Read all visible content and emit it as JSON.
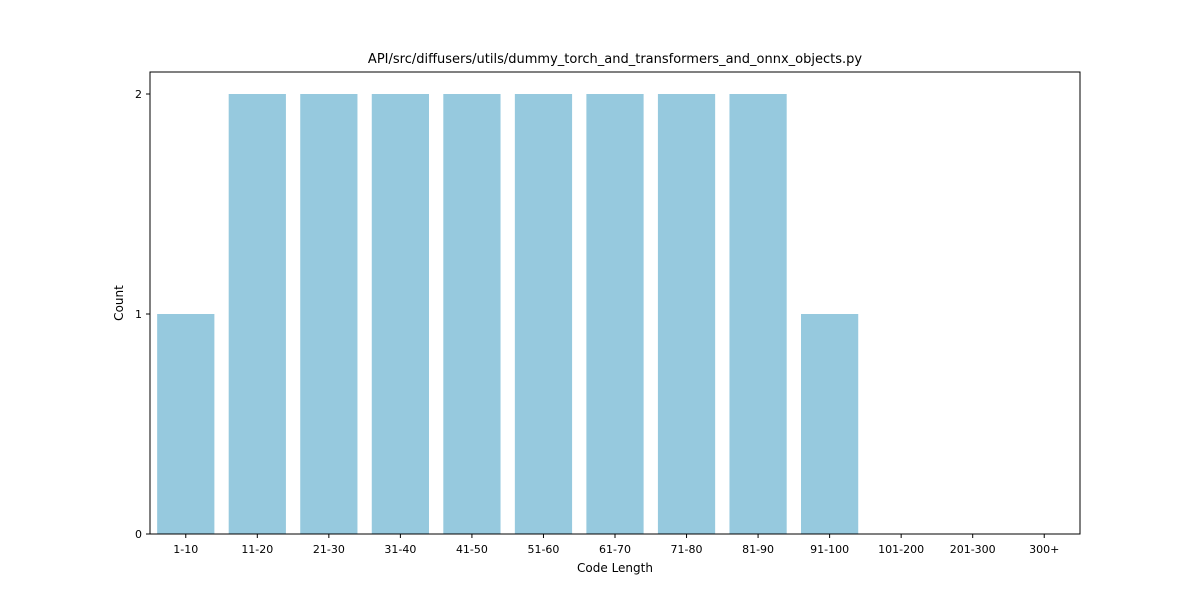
{
  "chart_data": {
    "type": "bar",
    "title": "API/src/diffusers/utils/dummy_torch_and_transformers_and_onnx_objects.py",
    "xlabel": "Code Length",
    "ylabel": "Count",
    "categories": [
      "1-10",
      "11-20",
      "21-30",
      "31-40",
      "41-50",
      "51-60",
      "61-70",
      "71-80",
      "81-90",
      "91-100",
      "101-200",
      "201-300",
      "300+"
    ],
    "values": [
      1,
      2,
      2,
      2,
      2,
      2,
      2,
      2,
      2,
      1,
      0,
      0,
      0
    ],
    "ylim": [
      0,
      2.1
    ],
    "yticks": [
      "0",
      "1",
      "2"
    ],
    "grid": false,
    "bar_color": "#96c9de"
  }
}
